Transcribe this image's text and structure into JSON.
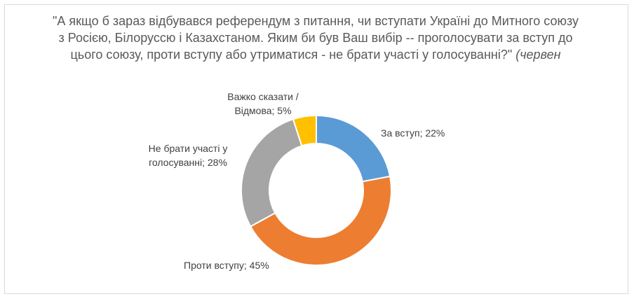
{
  "chart_data": {
    "type": "pie",
    "donut": true,
    "title": "\"А якщо б зараз відбувався референдум з питання, чи вступати Україні до Митного союзу з Росією, Білоруссю і Казахстаном. Яким би був Ваш вибір  -- проголосувати за вступ до цього союзу, проти вступу або утриматися - не брати участі у голосуванні?\"",
    "title_tail": "(червен",
    "categories": [
      "За вступ",
      "Проти вступу",
      "Не брати участі у голосуванні",
      "Важко сказати / Відмова"
    ],
    "values": [
      22,
      45,
      28,
      5
    ],
    "colors": [
      "#5b9bd5",
      "#ed7d31",
      "#a5a5a5",
      "#ffc000"
    ],
    "data_labels": [
      "За вступ; 22%",
      "Проти вступу; 45%",
      "Не брати участі у голосуванні; 28%",
      "Важко сказати / Відмова; 5%"
    ],
    "legend": "none"
  }
}
